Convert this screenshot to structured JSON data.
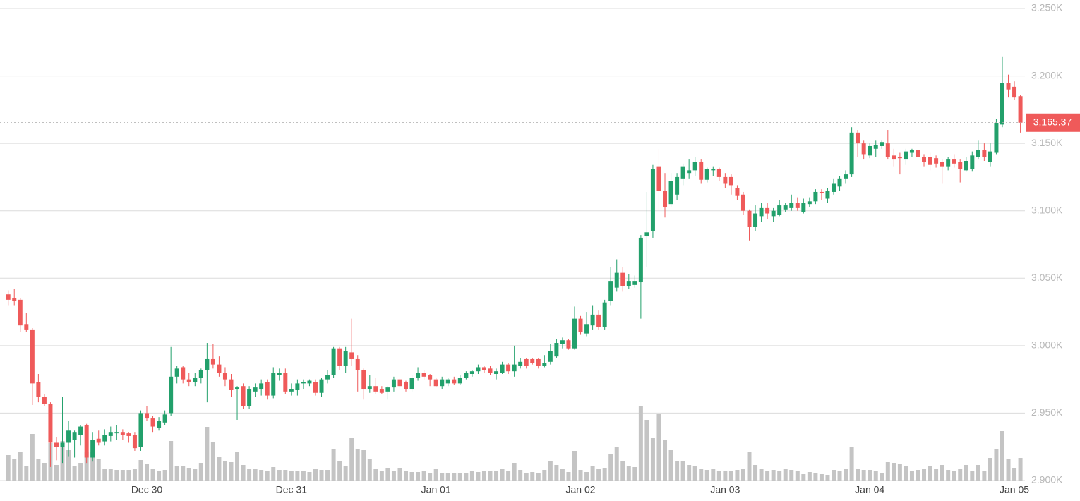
{
  "chart_data": {
    "type": "candlestick",
    "categories": [
      null,
      null,
      null,
      null,
      null,
      null,
      null,
      null,
      null,
      null,
      null,
      null,
      null,
      null,
      null,
      null,
      null,
      null,
      null,
      null,
      null,
      null,
      null,
      "Dec 30",
      null,
      null,
      null,
      null,
      null,
      null,
      null,
      null,
      null,
      null,
      null,
      null,
      null,
      null,
      null,
      null,
      null,
      null,
      null,
      null,
      null,
      null,
      null,
      "Dec 31",
      null,
      null,
      null,
      null,
      null,
      null,
      null,
      null,
      null,
      null,
      null,
      null,
      null,
      null,
      null,
      null,
      null,
      null,
      null,
      null,
      null,
      null,
      null,
      "Jan 01",
      null,
      null,
      null,
      null,
      null,
      null,
      null,
      null,
      null,
      null,
      null,
      null,
      null,
      null,
      null,
      null,
      null,
      null,
      null,
      null,
      null,
      null,
      null,
      "Jan 02",
      null,
      null,
      null,
      null,
      null,
      null,
      null,
      null,
      null,
      null,
      null,
      null,
      null,
      null,
      null,
      null,
      null,
      null,
      null,
      null,
      null,
      null,
      null,
      "Jan 03",
      null,
      null,
      null,
      null,
      null,
      null,
      null,
      null,
      null,
      null,
      null,
      null,
      null,
      null,
      null,
      null,
      null,
      null,
      null,
      null,
      null,
      null,
      null,
      "Jan 04",
      null,
      null,
      null,
      null,
      null,
      null,
      null,
      null,
      null,
      null,
      null,
      null,
      null,
      null,
      null,
      null,
      null,
      null,
      null,
      null,
      null,
      null,
      null,
      "Jan 05",
      null
    ],
    "open": [
      3038,
      3035,
      3034,
      3016,
      3012,
      2973,
      2962,
      2957,
      2928,
      2925,
      2928,
      2930,
      2934,
      2941,
      2917,
      2931,
      2929,
      2933,
      2935,
      2936,
      2935,
      2934,
      2925,
      2950,
      2946,
      2939,
      2943,
      2950,
      2977,
      2984,
      2975,
      2973,
      2976,
      2982,
      2990,
      2986,
      2980,
      2975,
      2968,
      2970,
      2955,
      2966,
      2968,
      2973,
      2963,
      2978,
      2980,
      2966,
      2967,
      2972,
      2972,
      2973,
      2965,
      2975,
      2978,
      2998,
      2985,
      2995,
      2990,
      2982,
      2968,
      2970,
      2968,
      2966,
      2969,
      2975,
      2973,
      2968,
      2976,
      2980,
      2978,
      2975,
      2970,
      2972,
      2975,
      2972,
      2976,
      2979,
      2981,
      2984,
      2983,
      2979,
      2980,
      2986,
      2981,
      2985,
      2990,
      2990,
      2990,
      2985,
      2988,
      2992,
      3001,
      3004,
      2998,
      3020,
      3009,
      3015,
      3023,
      3014,
      3033,
      3043,
      3054,
      3044,
      3045,
      3047,
      3081,
      3085,
      3133,
      3115,
      3105,
      3112,
      3124,
      3128,
      3130,
      3136,
      3123,
      3130,
      3131,
      3125,
      3125,
      3117,
      3112,
      3100,
      3088,
      3096,
      3102,
      3096,
      3097,
      3101,
      3102,
      3106,
      3099,
      3105,
      3107,
      3114,
      3109,
      3114,
      3118,
      3124,
      3127,
      3158,
      3150,
      3141,
      3146,
      3148,
      3150,
      3141,
      3140,
      3138,
      3143,
      3145,
      3140,
      3140,
      3139,
      3136,
      3133,
      3138,
      3136,
      3130,
      3131,
      3140,
      3145,
      3136,
      3143,
      3164,
      3195,
      3192,
      3185
    ],
    "high": [
      3041,
      3042,
      3035,
      3024,
      3013,
      2979,
      2964,
      2958,
      2932,
      2962,
      2944,
      2937,
      2941,
      2942,
      2936,
      2937,
      2938,
      2940,
      2941,
      2938,
      2936,
      2936,
      2952,
      2955,
      2948,
      2947,
      2952,
      2999,
      2985,
      2985,
      2980,
      2980,
      2983,
      3002,
      3001,
      2992,
      2984,
      2979,
      2970,
      2972,
      2970,
      2972,
      2975,
      2975,
      2984,
      2983,
      2983,
      2972,
      2975,
      2975,
      2975,
      2975,
      2976,
      2982,
      2999,
      2999,
      2999,
      3020,
      2993,
      2983,
      2978,
      2976,
      2970,
      2970,
      2977,
      2976,
      2974,
      2978,
      2984,
      2982,
      2979,
      2976,
      2977,
      2976,
      2977,
      2978,
      2981,
      2982,
      2986,
      2985,
      2985,
      2983,
      2988,
      2987,
      3000,
      2991,
      2991,
      2991,
      2991,
      2993,
      3001,
      3005,
      3006,
      3005,
      3029,
      3022,
      3025,
      3030,
      3026,
      3034,
      3058,
      3064,
      3058,
      3053,
      3052,
      3082,
      3114,
      3134,
      3146,
      3128,
      3128,
      3128,
      3135,
      3138,
      3140,
      3138,
      3132,
      3133,
      3132,
      3128,
      3127,
      3119,
      3114,
      3101,
      3104,
      3106,
      3106,
      3102,
      3108,
      3106,
      3112,
      3110,
      3109,
      3110,
      3116,
      3116,
      3117,
      3124,
      3126,
      3130,
      3162,
      3160,
      3152,
      3150,
      3152,
      3152,
      3160,
      3146,
      3143,
      3146,
      3146,
      3146,
      3142,
      3143,
      3141,
      3138,
      3140,
      3142,
      3138,
      3140,
      3144,
      3152,
      3150,
      3150,
      3168,
      3214,
      3201,
      3196,
      3186
    ],
    "low": [
      3030,
      3030,
      3010,
      3010,
      2956,
      2958,
      2955,
      2910,
      2915,
      2913,
      2918,
      2917,
      2926,
      2913,
      2914,
      2926,
      2926,
      2929,
      2930,
      2930,
      2928,
      2922,
      2922,
      2944,
      2936,
      2937,
      2941,
      2948,
      2972,
      2972,
      2970,
      2970,
      2972,
      2958,
      2983,
      2977,
      2970,
      2962,
      2945,
      2953,
      2953,
      2962,
      2963,
      2960,
      2961,
      2974,
      2964,
      2963,
      2963,
      2968,
      2970,
      2963,
      2962,
      2972,
      2976,
      2982,
      2980,
      2985,
      2966,
      2960,
      2965,
      2964,
      2964,
      2960,
      2966,
      2968,
      2966,
      2966,
      2974,
      2975,
      2970,
      2969,
      2968,
      2970,
      2971,
      2971,
      2975,
      2977,
      2979,
      2980,
      2978,
      2975,
      2979,
      2979,
      2977,
      2983,
      2983,
      2986,
      2983,
      2984,
      2986,
      2991,
      2998,
      2997,
      2997,
      3008,
      3007,
      3012,
      3012,
      3012,
      3030,
      3040,
      3040,
      3042,
      3043,
      3020,
      3058,
      3080,
      3100,
      3095,
      3103,
      3108,
      3119,
      3124,
      3126,
      3120,
      3121,
      3126,
      3122,
      3117,
      3112,
      3108,
      3097,
      3078,
      3085,
      3092,
      3094,
      3092,
      3096,
      3099,
      3100,
      3100,
      3098,
      3103,
      3105,
      3108,
      3106,
      3112,
      3115,
      3120,
      3125,
      3140,
      3138,
      3139,
      3140,
      3146,
      3138,
      3133,
      3127,
      3134,
      3140,
      3138,
      3133,
      3130,
      3132,
      3120,
      3130,
      3132,
      3121,
      3129,
      3129,
      3138,
      3137,
      3133,
      3142,
      3162,
      3184,
      3182,
      3158
    ],
    "close": [
      3034,
      3033,
      3015,
      3012,
      2972,
      2962,
      2957,
      2928,
      2925,
      2928,
      2937,
      2936,
      2940,
      2917,
      2930,
      2928,
      2934,
      2936,
      2936,
      2934,
      2933,
      2924,
      2950,
      2946,
      2940,
      2944,
      2949,
      2977,
      2983,
      2975,
      2973,
      2976,
      2982,
      2990,
      2986,
      2980,
      2975,
      2967,
      2969,
      2955,
      2968,
      2969,
      2972,
      2963,
      2980,
      2980,
      2966,
      2968,
      2972,
      2973,
      2974,
      2965,
      2975,
      2978,
      2998,
      2985,
      2996,
      2990,
      2982,
      2968,
      2970,
      2966,
      2965,
      2969,
      2975,
      2970,
      2968,
      2976,
      2980,
      2977,
      2975,
      2970,
      2975,
      2975,
      2972,
      2976,
      2980,
      2981,
      2984,
      2982,
      2980,
      2981,
      2986,
      2981,
      2986,
      2988,
      2985,
      2987,
      2985,
      2987,
      2996,
      3002,
      3004,
      2998,
      3020,
      3010,
      3016,
      3023,
      3014,
      3032,
      3048,
      3054,
      3044,
      3048,
      3048,
      3080,
      3084,
      3131,
      3115,
      3103,
      3122,
      3125,
      3133,
      3130,
      3136,
      3123,
      3131,
      3131,
      3125,
      3120,
      3119,
      3111,
      3100,
      3088,
      3098,
      3102,
      3098,
      3100,
      3104,
      3104,
      3106,
      3102,
      3106,
      3107,
      3114,
      3113,
      3115,
      3120,
      3124,
      3127,
      3158,
      3150,
      3142,
      3148,
      3149,
      3151,
      3140,
      3138,
      3139,
      3144,
      3145,
      3140,
      3136,
      3134,
      3135,
      3133,
      3138,
      3135,
      3131,
      3137,
      3141,
      3145,
      3140,
      3144,
      3165,
      3195,
      3190,
      3184,
      3165.37
    ],
    "volume": [
      36,
      30,
      40,
      20,
      66,
      30,
      25,
      53,
      22,
      56,
      43,
      20,
      25,
      40,
      40,
      30,
      17,
      17,
      15,
      15,
      15,
      17,
      29,
      24,
      17,
      14,
      15,
      56,
      21,
      20,
      18,
      17,
      25,
      76,
      54,
      33,
      28,
      26,
      40,
      22,
      16,
      16,
      15,
      14,
      19,
      15,
      15,
      14,
      13,
      13,
      12,
      17,
      15,
      15,
      45,
      28,
      20,
      60,
      45,
      43,
      30,
      17,
      14,
      18,
      13,
      18,
      13,
      12,
      12,
      13,
      10,
      17,
      10,
      10,
      10,
      10,
      11,
      13,
      12,
      13,
      13,
      14,
      16,
      13,
      25,
      15,
      10,
      12,
      10,
      15,
      28,
      22,
      17,
      12,
      42,
      15,
      12,
      20,
      17,
      18,
      37,
      47,
      27,
      20,
      19,
      105,
      86,
      60,
      94,
      58,
      43,
      28,
      28,
      22,
      20,
      17,
      15,
      16,
      14,
      14,
      13,
      15,
      16,
      40,
      22,
      16,
      13,
      15,
      13,
      16,
      15,
      13,
      9,
      12,
      10,
      9,
      8,
      15,
      14,
      16,
      48,
      16,
      15,
      15,
      14,
      11,
      26,
      25,
      24,
      20,
      14,
      15,
      17,
      20,
      17,
      22,
      15,
      14,
      17,
      22,
      14,
      22,
      14,
      32,
      45,
      70,
      31,
      18,
      32
    ],
    "up_color": "#22a06b",
    "down_color": "#ef5a5a",
    "volume_color": "#c4c4c4",
    "ylim": [
      2900,
      3250
    ],
    "yticks": [
      {
        "value": 2900,
        "label": "2.900K"
      },
      {
        "value": 2950,
        "label": "2.950K"
      },
      {
        "value": 3000,
        "label": "3.000K"
      },
      {
        "value": 3050,
        "label": "3.050K"
      },
      {
        "value": 3100,
        "label": "3.100K"
      },
      {
        "value": 3150,
        "label": "3.150K"
      },
      {
        "value": 3200,
        "label": "3.200K"
      },
      {
        "value": 3250,
        "label": "3.250K"
      }
    ],
    "grid": true,
    "current_price": {
      "value": 3165.37,
      "label": "3,165.37"
    }
  }
}
